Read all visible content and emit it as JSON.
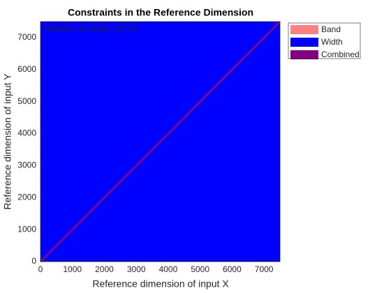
{
  "chart_data": {
    "type": "area",
    "title": "Constraints in the Reference Dimension",
    "xlabel": "Reference dimension of input X",
    "ylabel": "Reference dimension of input Y",
    "annotation": "Number of nodes: 11772",
    "series": [
      {
        "name": "Band",
        "color": "#ff8080",
        "x": [
          0,
          7500
        ],
        "values": [
          0,
          7500
        ]
      },
      {
        "name": "Width",
        "color": "#0000ff",
        "x": [
          0,
          7500,
          7500,
          0
        ],
        "values": [
          0,
          0,
          7500,
          7500
        ]
      },
      {
        "name": "Combined",
        "color": "#800080",
        "x": [
          0,
          7500
        ],
        "values": [
          0,
          7500
        ]
      }
    ],
    "xlim": [
      0,
      7500
    ],
    "ylim": [
      0,
      7500
    ],
    "xticks": [
      0,
      1000,
      2000,
      3000,
      4000,
      5000,
      6000,
      7000
    ],
    "yticks": [
      0,
      1000,
      2000,
      3000,
      4000,
      5000,
      6000,
      7000
    ],
    "legend": "outside-top-right"
  }
}
